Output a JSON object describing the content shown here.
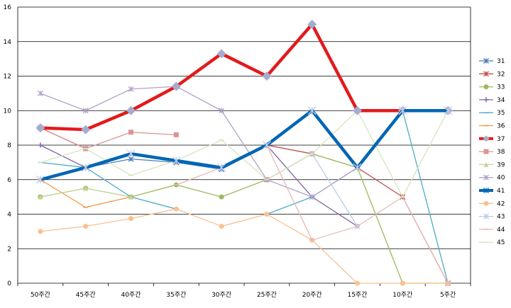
{
  "chart_data": {
    "type": "line",
    "title": "",
    "xlabel": "",
    "ylabel": "",
    "ylim": [
      0,
      16
    ],
    "y_ticks": [
      0,
      2,
      4,
      6,
      8,
      10,
      12,
      14,
      16
    ],
    "grid": "horizontal",
    "legend_position": "right",
    "categories": [
      "50주간",
      "45주간",
      "40주간",
      "35주간",
      "30주간",
      "25주간",
      "20주간",
      "15주간",
      "10주간",
      "5주간"
    ],
    "series": [
      {
        "name": "31",
        "color": "#4a7ebb",
        "marker": "star",
        "bold": false,
        "values": [
          6,
          6.7,
          7.2,
          7,
          6.6,
          8,
          10,
          6.7,
          10,
          10
        ]
      },
      {
        "name": "32",
        "color": "#c0504d",
        "marker": "star",
        "bold": false,
        "values": [
          9,
          7.8,
          null,
          null,
          null,
          8,
          7.5,
          6.7,
          5,
          0
        ]
      },
      {
        "name": "33",
        "color": "#9bbb59",
        "marker": "circle",
        "bold": false,
        "values": [
          5,
          5.5,
          5,
          5.7,
          5,
          6,
          7.5,
          6.7,
          0,
          0
        ]
      },
      {
        "name": "34",
        "color": "#8064a2",
        "marker": "plus",
        "bold": false,
        "values": [
          8,
          6.7,
          null,
          null,
          null,
          8,
          5,
          3.3,
          null,
          null
        ]
      },
      {
        "name": "35",
        "color": "#4bacc6",
        "marker": "dash",
        "bold": false,
        "values": [
          7,
          6.7,
          5,
          4.3,
          null,
          4,
          5,
          6.7,
          10,
          0
        ]
      },
      {
        "name": "36",
        "color": "#f79646",
        "marker": "dash",
        "bold": false,
        "values": [
          6,
          4.4,
          5,
          null,
          null,
          null,
          null,
          null,
          null,
          null
        ]
      },
      {
        "name": "37",
        "color": "#e31a1c",
        "marker": "diamond",
        "bold": true,
        "values": [
          9,
          8.9,
          10,
          11.4,
          13.3,
          12,
          15,
          10,
          10,
          10
        ]
      },
      {
        "name": "38",
        "color": "#d99694",
        "marker": "square",
        "bold": false,
        "values": [
          9,
          7.8,
          8.75,
          8.6,
          null,
          6,
          7.5,
          null,
          null,
          null
        ]
      },
      {
        "name": "39",
        "color": "#c3d69b",
        "marker": "triangle",
        "bold": false,
        "values": [
          5,
          5.5,
          5,
          null,
          null,
          null,
          null,
          null,
          null,
          null
        ]
      },
      {
        "name": "40",
        "color": "#b3a2c7",
        "marker": "star",
        "bold": false,
        "values": [
          11,
          10,
          11.25,
          11.4,
          10,
          6,
          5,
          6.7,
          null,
          null
        ]
      },
      {
        "name": "41",
        "color": "#0066b3",
        "marker": "star",
        "bold": true,
        "values": [
          6,
          6.7,
          7.5,
          7.1,
          6.7,
          8,
          10,
          6.7,
          10,
          10
        ]
      },
      {
        "name": "42",
        "color": "#fac090",
        "marker": "circle",
        "bold": false,
        "values": [
          3,
          3.3,
          3.75,
          4.3,
          3.3,
          4,
          2.5,
          0,
          0,
          0
        ]
      },
      {
        "name": "43",
        "color": "#b9cde5",
        "marker": "star",
        "bold": false,
        "values": [
          null,
          null,
          null,
          null,
          null,
          null,
          7.5,
          3.3,
          null,
          null
        ]
      },
      {
        "name": "44",
        "color": "#e6b9b8",
        "marker": "dash",
        "bold": false,
        "values": [
          null,
          null,
          null,
          5.7,
          6.7,
          8,
          2.5,
          3.3,
          5,
          0
        ]
      },
      {
        "name": "45",
        "color": "#d7e4bd",
        "marker": "dash",
        "bold": false,
        "values": [
          7,
          7.8,
          6.25,
          7.1,
          8.3,
          6,
          7.5,
          10,
          5,
          10
        ]
      }
    ]
  }
}
